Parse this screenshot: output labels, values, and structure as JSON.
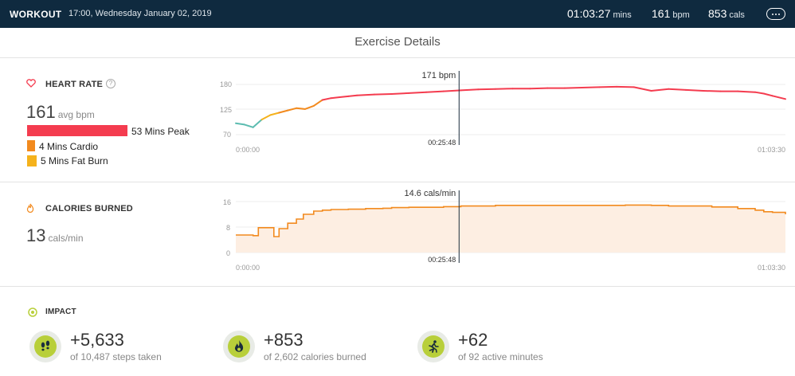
{
  "header": {
    "brand": "WORKOUT",
    "datetime": "17:00, Wednesday January 02, 2019",
    "duration": "01:03:27",
    "duration_unit": "mins",
    "bpm": "161",
    "bpm_unit": "bpm",
    "cals": "853",
    "cals_unit": "cals",
    "more_icon": "more-icon"
  },
  "title": "Exercise Details",
  "heart_rate": {
    "label": "HEART RATE",
    "help": "?",
    "avg_value": "161",
    "avg_unit": "avg bpm",
    "zones": [
      {
        "label": "53 Mins Peak",
        "minutes": 53,
        "color": "#f43c4f"
      },
      {
        "label": "4 Mins Cardio",
        "minutes": 4,
        "color": "#f28a1e"
      },
      {
        "label": "5 Mins Fat Burn",
        "minutes": 5,
        "color": "#f5b21c"
      }
    ]
  },
  "calories": {
    "label": "CALORIES BURNED",
    "avg_value": "13",
    "avg_unit": "cals/min"
  },
  "impact": {
    "label": "IMPACT",
    "items": [
      {
        "value": "+5,633",
        "sub": "of 10,487 steps taken",
        "icon": "footsteps-icon"
      },
      {
        "value": "+853",
        "sub": "of 2,602 calories burned",
        "icon": "flame-icon"
      },
      {
        "value": "+62",
        "sub": "of 92 active minutes",
        "icon": "runner-icon"
      }
    ]
  },
  "chart_data": [
    {
      "type": "line",
      "y_ticks": [
        "180",
        "125",
        "70"
      ],
      "ylim": [
        70,
        180
      ],
      "x_tick_labels": [
        "0:00:00",
        "01:03:30"
      ],
      "cursor_label": "171 bpm",
      "cursor_time": "00:25:48",
      "cursor_minute": 25.8,
      "duration_minutes": 63.5,
      "series": [
        {
          "x": [
            0,
            1,
            2,
            3,
            4,
            5,
            6,
            7,
            8,
            9,
            10,
            11,
            12,
            13,
            14,
            16,
            18,
            20,
            22,
            24,
            26,
            28,
            30,
            32,
            34,
            36,
            38,
            40,
            42,
            44,
            46,
            48,
            50,
            52,
            54,
            56,
            58,
            60,
            61,
            62,
            63.5
          ],
          "y": [
            95,
            92,
            86,
            103,
            113,
            118,
            123,
            128,
            126,
            133,
            146,
            150,
            152,
            154,
            156,
            158,
            159,
            161,
            163,
            165,
            167,
            169,
            170,
            171,
            171,
            172,
            172,
            173,
            174,
            175,
            174,
            166,
            170,
            168,
            166,
            165,
            165,
            163,
            160,
            155,
            148
          ]
        }
      ]
    },
    {
      "type": "area",
      "y_ticks": [
        "16",
        "8",
        "0"
      ],
      "ylim": [
        0,
        16
      ],
      "x_tick_labels": [
        "0:00:00",
        "01:03:30"
      ],
      "cursor_label": "14.6 cals/min",
      "cursor_time": "00:25:48",
      "cursor_minute": 25.8,
      "duration_minutes": 63.5,
      "series": [
        {
          "x": [
            0,
            2,
            2.6,
            4.4,
            5,
            6,
            7,
            7.8,
            9,
            10,
            11,
            13,
            15,
            17,
            18,
            20,
            24,
            26,
            30,
            35,
            40,
            45,
            48,
            50,
            55,
            58,
            60,
            61,
            62,
            63.5
          ],
          "y": [
            5.5,
            5.3,
            7.8,
            5.0,
            7.5,
            9.2,
            10.5,
            12.0,
            13.0,
            13.3,
            13.5,
            13.6,
            13.8,
            13.9,
            14.1,
            14.2,
            14.4,
            14.6,
            14.8,
            14.8,
            14.8,
            14.9,
            14.8,
            14.6,
            14.3,
            13.8,
            13.3,
            12.8,
            12.6,
            12.0
          ]
        }
      ]
    }
  ]
}
